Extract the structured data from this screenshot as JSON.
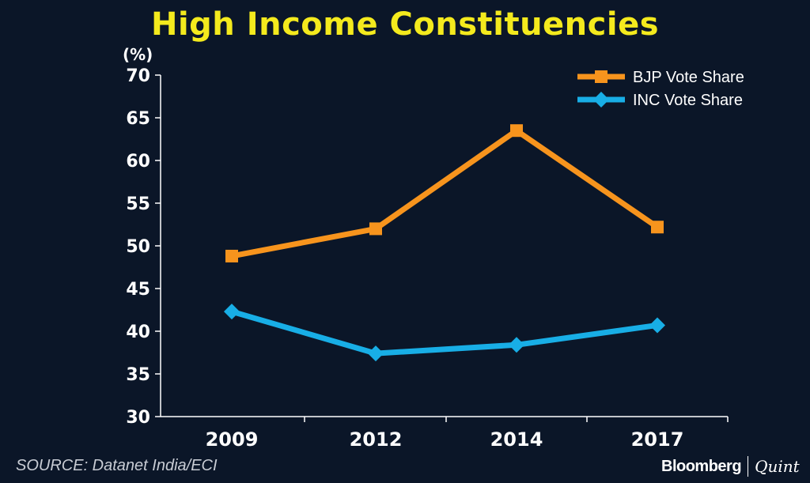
{
  "chart_data": {
    "type": "line",
    "title": "High Income Constituencies",
    "ylabel": "(%)",
    "categories": [
      "2009",
      "2012",
      "2014",
      "2017"
    ],
    "ylim": [
      30,
      70
    ],
    "yticks": [
      30,
      35,
      40,
      45,
      50,
      55,
      60,
      65,
      70
    ],
    "grid": false,
    "legend_position": "top-right",
    "series": [
      {
        "name": "BJP Vote Share",
        "values": [
          48.8,
          52.0,
          63.5,
          52.2
        ],
        "color": "#f7941d",
        "marker": "square"
      },
      {
        "name": "INC Vote Share",
        "values": [
          42.3,
          37.4,
          38.4,
          40.7
        ],
        "color": "#18aee6",
        "marker": "diamond"
      }
    ]
  },
  "footer": {
    "source": "SOURCE: Datanet India/ECI",
    "brand_left": "Bloomberg",
    "brand_right": "Quint"
  }
}
